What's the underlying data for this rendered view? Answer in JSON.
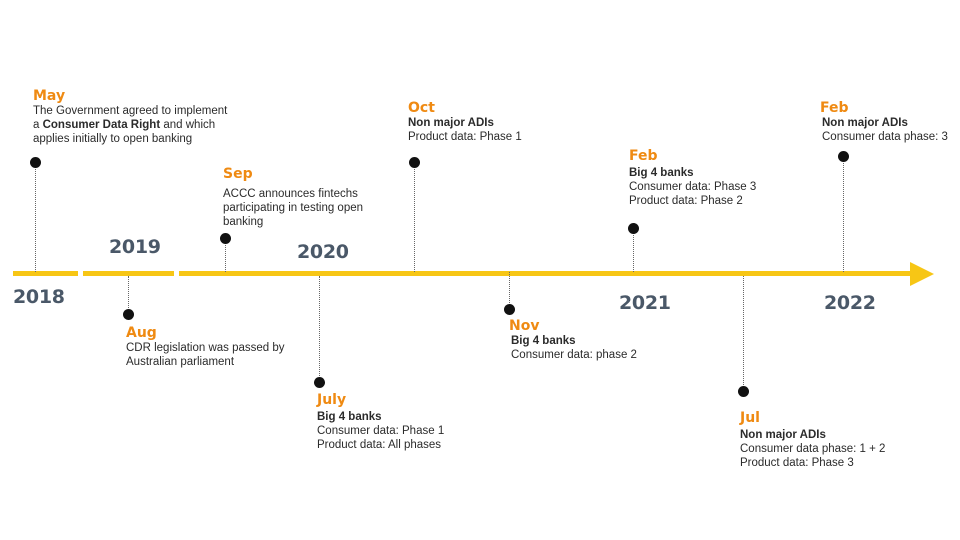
{
  "years": [
    "2018",
    "2019",
    "2020",
    "2021",
    "2022"
  ],
  "events": {
    "may_2018": {
      "month": "May",
      "desc_before": "The Government agreed to implement a ",
      "desc_bold": "Consumer Data Right",
      "desc_after": " and which applies initially to open banking"
    },
    "aug_2018": {
      "month": "Aug",
      "desc": "CDR legislation was passed by Australian parliament"
    },
    "sep_2019": {
      "month": "Sep",
      "desc": "ACCC announces fintechs participating in testing open banking"
    },
    "july_2020": {
      "month": "July",
      "title": "Big 4 banks",
      "lines": [
        "Consumer data: Phase 1",
        "Product data: All phases"
      ]
    },
    "oct_2020": {
      "month": "Oct",
      "title": "Non major ADIs",
      "lines": [
        "Product data: Phase 1"
      ]
    },
    "nov_2020": {
      "month": "Nov",
      "title": "Big 4 banks",
      "lines": [
        "Consumer data: phase 2"
      ]
    },
    "feb_2021": {
      "month": "Feb",
      "title": "Big 4 banks",
      "lines": [
        "Consumer data: Phase 3",
        "Product data: Phase 2"
      ]
    },
    "jul_2021": {
      "month": "Jul",
      "title": "Non major ADIs",
      "lines": [
        "Consumer data phase: 1 + 2",
        "Product data: Phase 3"
      ]
    },
    "feb_2022": {
      "month": "Feb",
      "title": "Non major ADIs",
      "lines": [
        "Consumer data phase: 3"
      ]
    }
  },
  "colors": {
    "axis": "#f7c615",
    "month": "#ef8a12",
    "year": "#4a5868",
    "text": "#2b2b2b",
    "dot": "#111111"
  }
}
